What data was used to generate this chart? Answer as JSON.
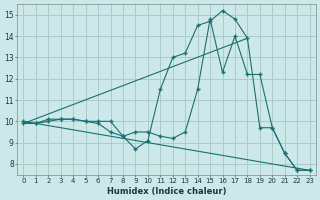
{
  "background_color": "#cce8e8",
  "grid_color": "#aacccc",
  "line_color": "#1a7070",
  "xlabel": "Humidex (Indice chaleur)",
  "xlim": [
    -0.5,
    23.5
  ],
  "ylim": [
    7.5,
    15.5
  ],
  "yticks": [
    8,
    9,
    10,
    11,
    12,
    13,
    14,
    15
  ],
  "xticks": [
    0,
    1,
    2,
    3,
    4,
    5,
    6,
    7,
    8,
    9,
    10,
    11,
    12,
    13,
    14,
    15,
    16,
    17,
    18,
    19,
    20,
    21,
    22,
    23
  ],
  "lines": [
    {
      "x": [
        0,
        1,
        2,
        3,
        4,
        5,
        6,
        7,
        8,
        9,
        10,
        11,
        12,
        13,
        14,
        15,
        16,
        17,
        18,
        19,
        20,
        21,
        22,
        23
      ],
      "y": [
        10.0,
        9.9,
        10.1,
        10.1,
        10.1,
        10.0,
        10.0,
        10.0,
        9.3,
        8.7,
        9.1,
        11.5,
        13.0,
        13.2,
        14.5,
        14.7,
        15.2,
        14.8,
        13.9,
        9.7,
        9.7,
        8.5,
        7.7,
        7.7
      ],
      "has_marker": true
    },
    {
      "x": [
        0,
        1,
        2,
        3,
        4,
        5,
        6,
        7,
        8,
        9,
        10,
        11,
        12,
        13,
        14,
        15,
        16,
        17,
        18,
        19,
        20,
        21,
        22,
        23
      ],
      "y": [
        9.9,
        9.9,
        10.0,
        10.1,
        10.1,
        10.0,
        9.9,
        9.5,
        9.3,
        9.5,
        9.5,
        9.3,
        9.2,
        9.5,
        11.5,
        14.8,
        12.3,
        14.0,
        12.2,
        12.2,
        9.7,
        8.5,
        7.7,
        7.7
      ],
      "has_marker": true
    },
    {
      "x": [
        0,
        18
      ],
      "y": [
        9.9,
        13.9
      ],
      "has_marker": false
    },
    {
      "x": [
        0,
        23
      ],
      "y": [
        10.0,
        7.7
      ],
      "has_marker": false
    }
  ]
}
